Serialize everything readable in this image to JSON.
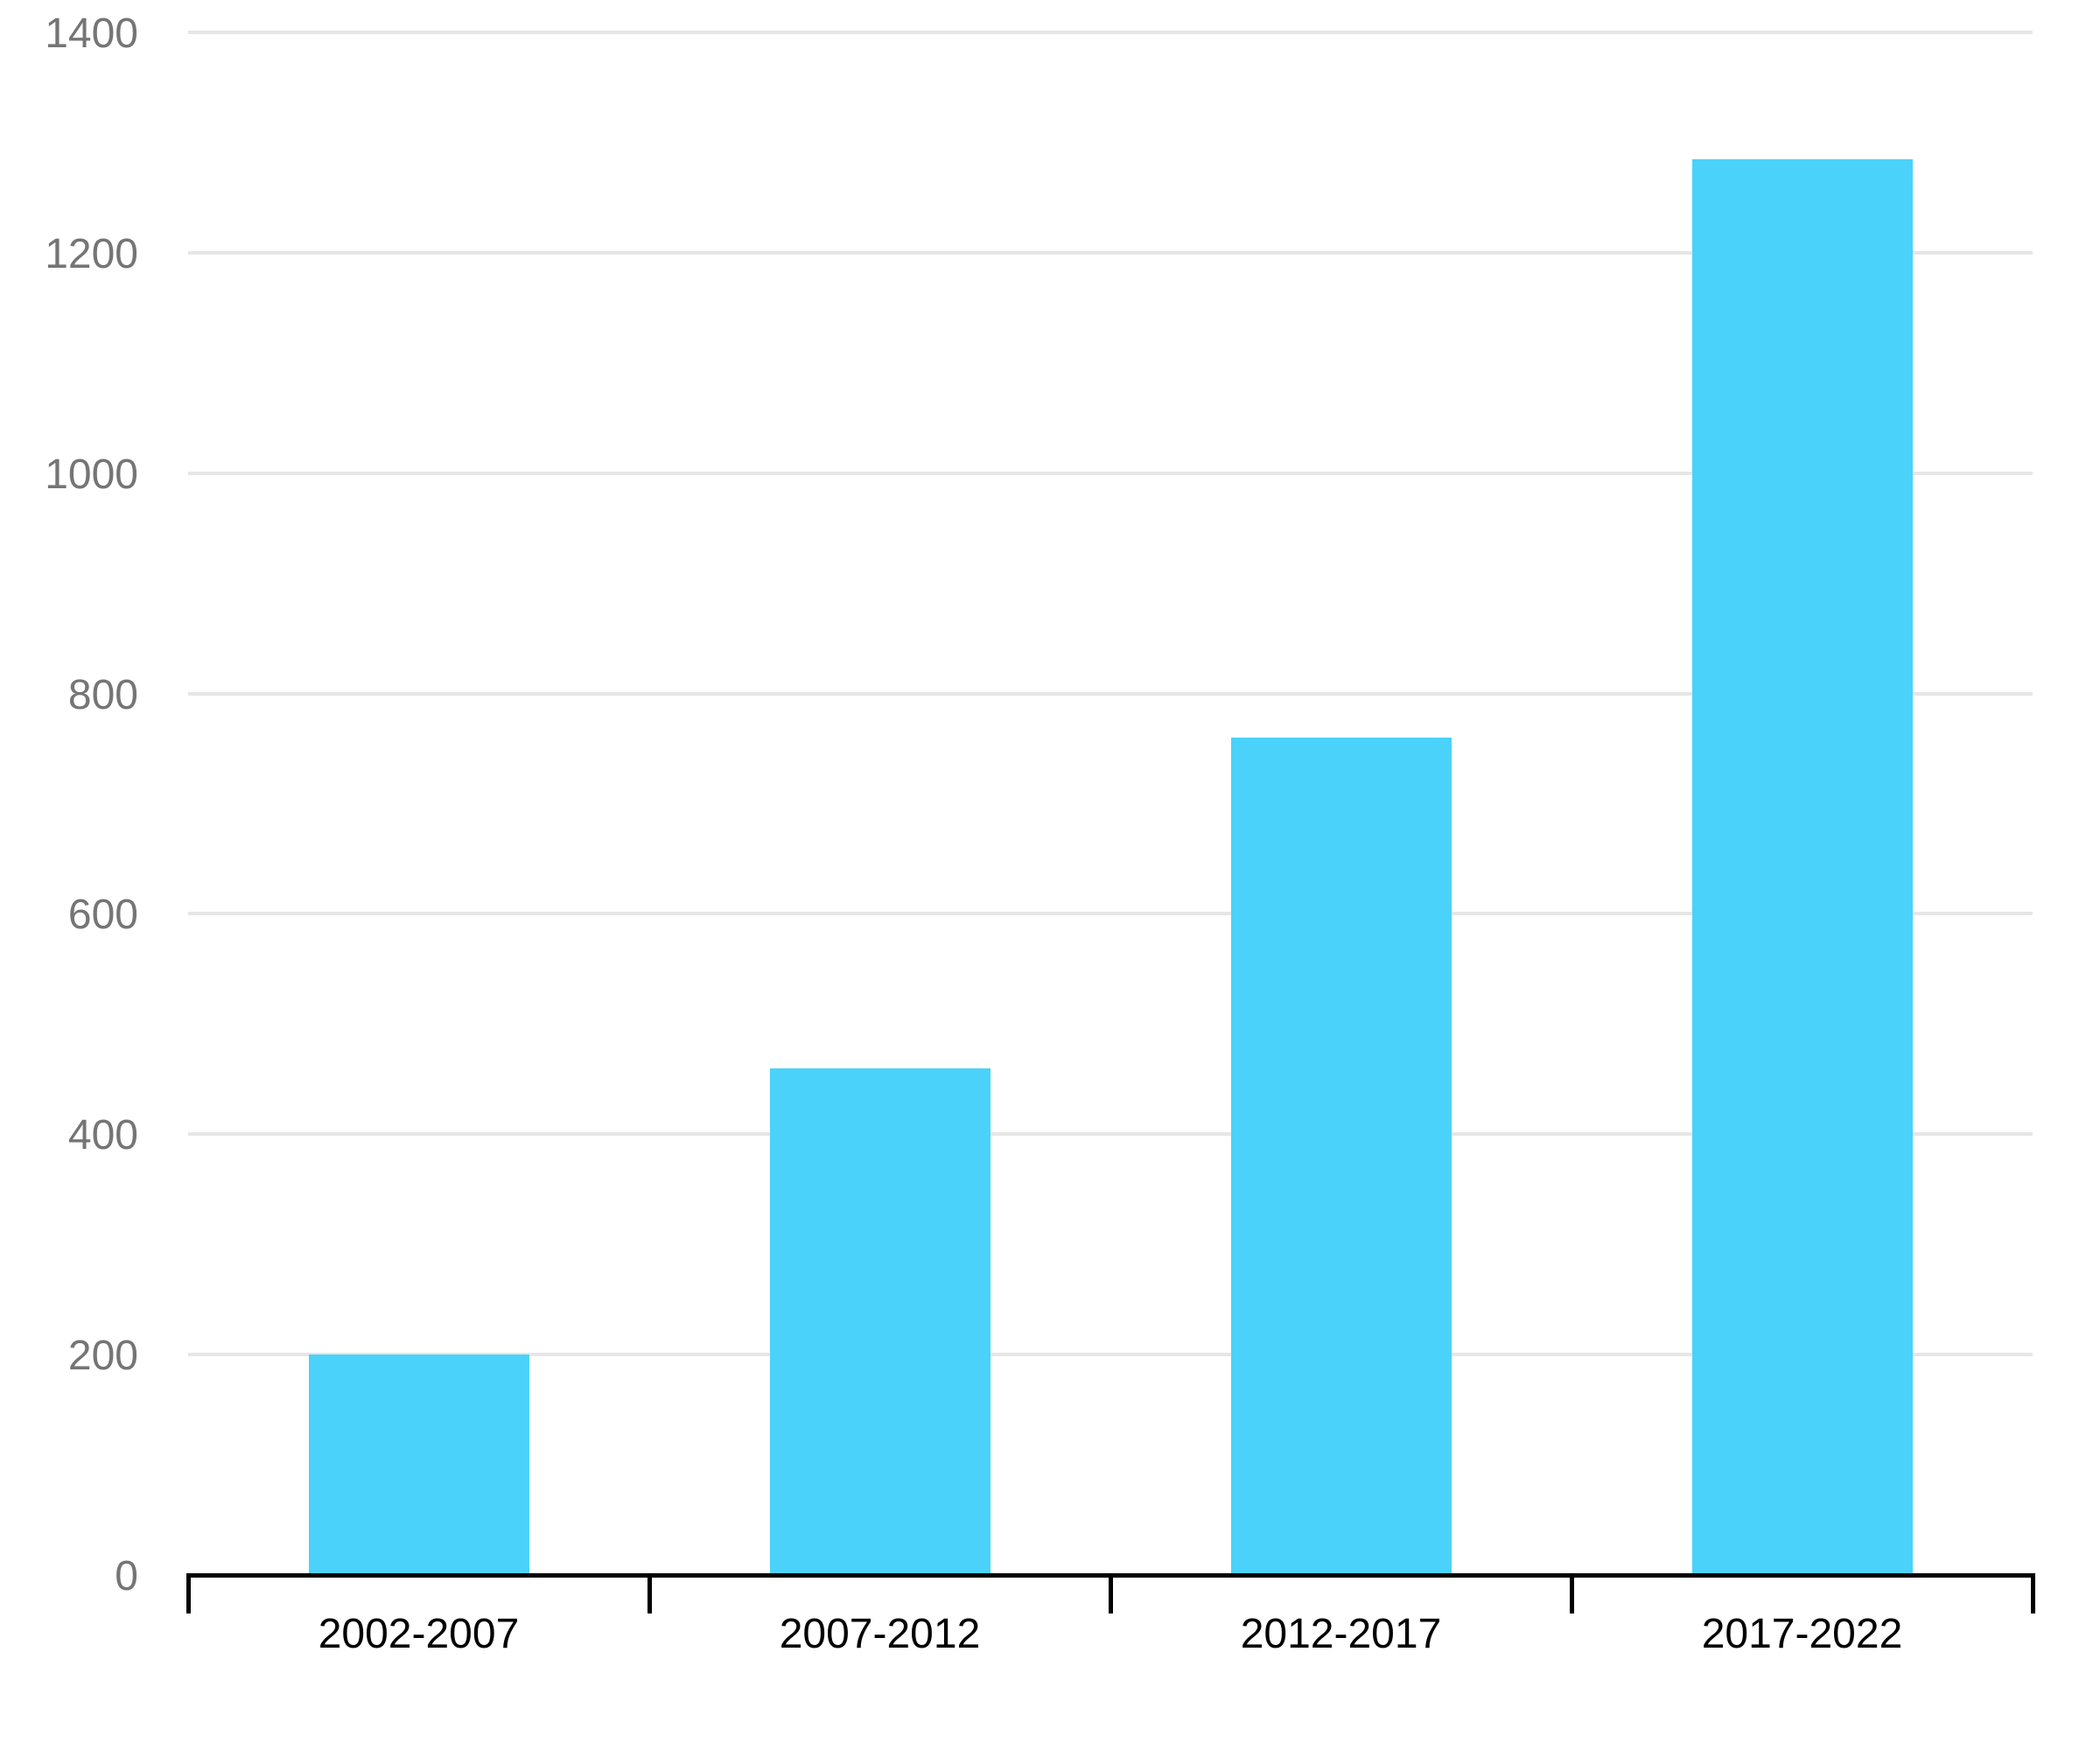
{
  "chart_data": {
    "type": "bar",
    "title": "",
    "xlabel": "",
    "ylabel": "",
    "categories": [
      "2002-2007",
      "2007-2012",
      "2012-2017",
      "2017-2022"
    ],
    "values": [
      200,
      460,
      760,
      1285
    ],
    "ylim": [
      0,
      1400
    ],
    "yticks": [
      0,
      200,
      400,
      600,
      800,
      1000,
      1200,
      1400
    ],
    "grid": true,
    "legend": "none",
    "colors": {
      "bar_fill": "#4AD2FA",
      "gridline": "#E6E6E6",
      "axis_line": "#000000",
      "ytick_label": "#757575",
      "xtick_label": "#000000",
      "background": "#FFFFFF"
    }
  }
}
